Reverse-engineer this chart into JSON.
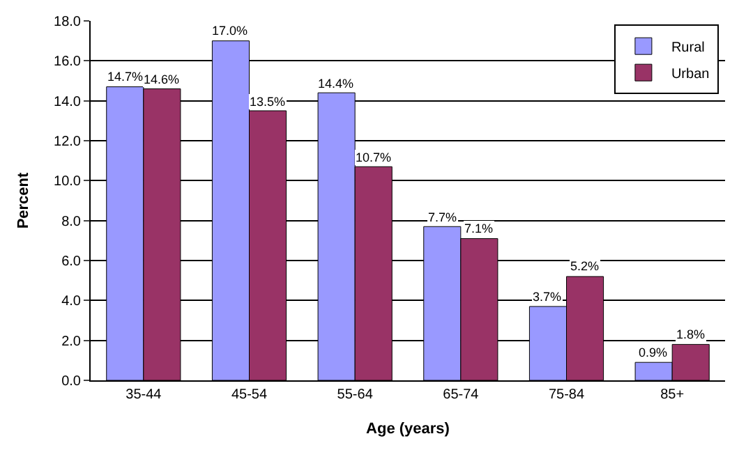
{
  "chart_data": {
    "type": "bar",
    "xlabel": "Age (years)",
    "ylabel": "Percent",
    "categories": [
      "35-44",
      "45-54",
      "55-64",
      "65-74",
      "75-84",
      "85+"
    ],
    "series": [
      {
        "name": "Rural",
        "color": "#9999ff",
        "values": [
          14.7,
          17.0,
          14.4,
          7.7,
          3.7,
          0.9
        ],
        "value_labels": [
          "14.7%",
          "17.0%",
          "14.4%",
          "7.7%",
          "3.7%",
          "0.9%"
        ]
      },
      {
        "name": "Urban",
        "color": "#993366",
        "values": [
          14.6,
          13.5,
          10.7,
          7.1,
          5.2,
          1.8
        ],
        "value_labels": [
          "14.6%",
          "13.5%",
          "10.7%",
          "7.1%",
          "5.2%",
          "1.8%"
        ]
      }
    ],
    "ylim": [
      0,
      18
    ],
    "yticks": [
      {
        "value": 0,
        "label": "0.0"
      },
      {
        "value": 2,
        "label": "2.0"
      },
      {
        "value": 4,
        "label": "4.0"
      },
      {
        "value": 6,
        "label": "6.0"
      },
      {
        "value": 8,
        "label": "8.0"
      },
      {
        "value": 10,
        "label": "10.0"
      },
      {
        "value": 12,
        "label": "12.0"
      },
      {
        "value": 14,
        "label": "14.0"
      },
      {
        "value": 16,
        "label": "16.0"
      },
      {
        "value": 18,
        "label": "18.0"
      }
    ],
    "grid": "y",
    "legend": "top right"
  }
}
